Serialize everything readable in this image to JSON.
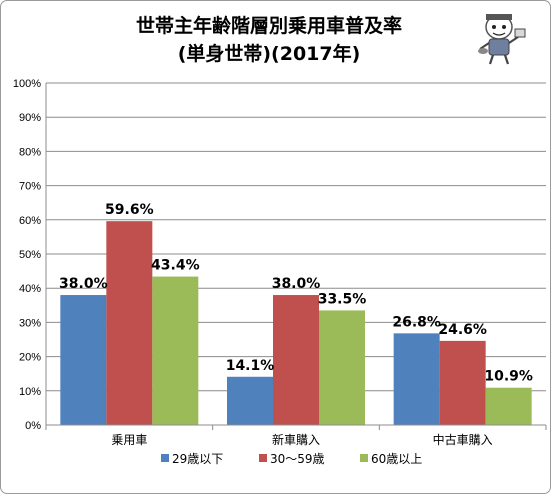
{
  "chart_data": {
    "type": "bar",
    "title_line1": "世帯主年齢階層別乗用車普及率",
    "title_line2": "(単身世帯)(2017年)",
    "categories": [
      "乗用車",
      "新車購入",
      "中古車購入"
    ],
    "series": [
      {
        "name": "29歳以下",
        "color": "#4f81bd",
        "values": [
          38.0,
          14.1,
          26.8
        ],
        "labels": [
          "38.0%",
          "14.1%",
          "26.8%"
        ]
      },
      {
        "name": "30～59歳",
        "color": "#c0504d",
        "values": [
          59.6,
          38.0,
          24.6
        ],
        "labels": [
          "59.6%",
          "38.0%",
          "24.6%"
        ]
      },
      {
        "name": "60歳以上",
        "color": "#9bbb59",
        "values": [
          43.4,
          33.5,
          10.9
        ],
        "labels": [
          "43.4%",
          "33.5%",
          "10.9%"
        ]
      }
    ],
    "ylim": [
      0,
      100
    ],
    "yticks": [
      0,
      10,
      20,
      30,
      40,
      50,
      60,
      70,
      80,
      90,
      100
    ],
    "ytick_labels": [
      "0%",
      "10%",
      "20%",
      "30%",
      "40%",
      "50%",
      "60%",
      "70%",
      "80%",
      "90%",
      "100%"
    ],
    "grid": true,
    "legend_position": "bottom"
  },
  "mascot_icon": "cartoon-mascot-icon"
}
